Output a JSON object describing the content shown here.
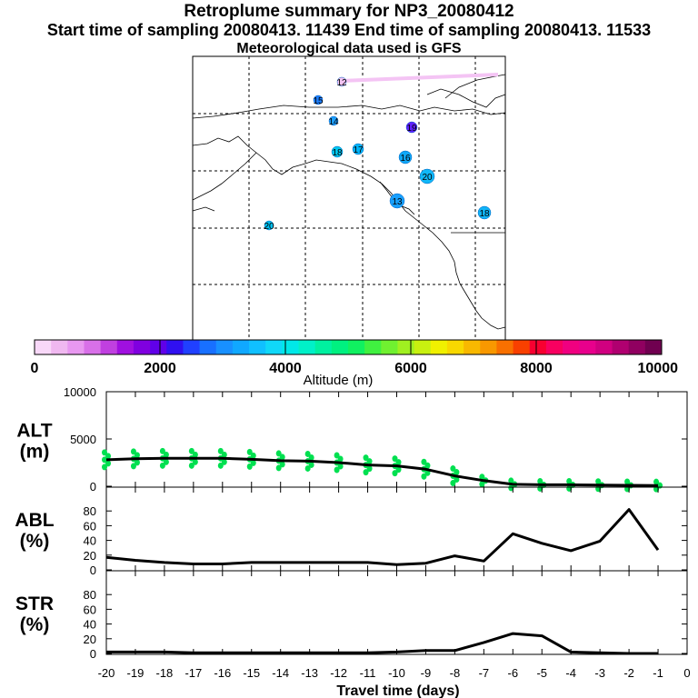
{
  "header": {
    "title": "Retroplume summary for NP3_20080412",
    "subtitle": "Start time of sampling 20080413. 11439     End time of sampling 20080413. 11533",
    "met": "Meteorological data used is GFS"
  },
  "map": {
    "markers": [
      {
        "label": "12",
        "color": "#f4c4f4"
      },
      {
        "label": "15",
        "color": "#1f7fff"
      },
      {
        "label": "14",
        "color": "#1f9fff"
      },
      {
        "label": "19",
        "color": "#6020ff"
      },
      {
        "label": "18",
        "color": "#00c8f0"
      },
      {
        "label": "17",
        "color": "#00b4f8"
      },
      {
        "label": "16",
        "color": "#10a8f8"
      },
      {
        "label": "20",
        "color": "#10b8f8"
      },
      {
        "label": "13",
        "color": "#18a0ff"
      },
      {
        "label": "18",
        "color": "#10b4f8"
      },
      {
        "label": "20",
        "color": "#00c0f0"
      }
    ]
  },
  "colorbar": {
    "label": "Altitude (m)",
    "ticks": [
      "0",
      "2000",
      "4000",
      "6000",
      "8000",
      "10000"
    ],
    "colors": [
      "#f8d8f8",
      "#f0b8f0",
      "#e898f0",
      "#d870e8",
      "#c040e0",
      "#a010e0",
      "#8000e0",
      "#6000e8",
      "#3010f0",
      "#2040ff",
      "#1870ff",
      "#1890ff",
      "#10a8ff",
      "#10c0ff",
      "#10d8f8",
      "#00e8e8",
      "#00f0c8",
      "#00f0a0",
      "#00f080",
      "#10f060",
      "#40f040",
      "#70f030",
      "#a0f020",
      "#c8f010",
      "#f0f000",
      "#f8d800",
      "#f8b800",
      "#f89800",
      "#f87000",
      "#f84000",
      "#f80030",
      "#f80060",
      "#f00080",
      "#e8008c",
      "#d00080",
      "#b00070",
      "#900060",
      "#700050"
    ]
  },
  "chart_data": {
    "type": "line",
    "xlabel": "Travel time (days)",
    "x": [
      -20,
      -19,
      -18,
      -17,
      -16,
      -15,
      -14,
      -13,
      -12,
      -11,
      -10,
      -9,
      -8,
      -7,
      -6,
      -5,
      -4,
      -3,
      -2,
      -1
    ],
    "xticks": [
      "-20",
      "-19",
      "-18",
      "-17",
      "-16",
      "-15",
      "-14",
      "-13",
      "-12",
      "-11",
      "-10",
      "-9",
      "-8",
      "-7",
      "-6",
      "-5",
      "-4",
      "-3",
      "-2",
      "-1",
      "0"
    ],
    "panels": [
      {
        "name": "alt",
        "ylabel_top": "ALT",
        "ylabel_bottom": "(m)",
        "ylim": [
          0,
          10000
        ],
        "yticks": [
          "0",
          "5000",
          "10000"
        ],
        "series": [
          {
            "name": "ALT",
            "values": [
              2800,
              2900,
              2950,
              2950,
              2950,
              2850,
              2700,
              2650,
              2500,
              2250,
              2150,
              1800,
              1100,
              600,
              200,
              150,
              150,
              120,
              100,
              80
            ]
          }
        ],
        "scatter_color": "#00e050"
      },
      {
        "name": "abl",
        "ylabel_top": "ABL",
        "ylabel_bottom": "(%)",
        "ylim": [
          0,
          100
        ],
        "yticks": [
          "0",
          "20",
          "40",
          "60",
          "80"
        ],
        "series": [
          {
            "name": "ABL",
            "values": [
              17,
              13,
              10,
              8,
              8,
              10,
              10,
              10,
              10,
              10,
              7,
              9,
              19,
              12,
              49,
              36,
              26,
              39,
              82,
              27
            ]
          }
        ]
      },
      {
        "name": "str",
        "ylabel_top": "STR",
        "ylabel_bottom": "(%)",
        "ylim": [
          0,
          100
        ],
        "yticks": [
          "0",
          "20",
          "40",
          "60",
          "80"
        ],
        "series": [
          {
            "name": "STR",
            "values": [
              2,
              2,
              2,
              1,
              1,
              1,
              1,
              1,
              1,
              1,
              2,
              4,
              4,
              15,
              27,
              24,
              2,
              1,
              0,
              0
            ]
          }
        ]
      }
    ]
  }
}
